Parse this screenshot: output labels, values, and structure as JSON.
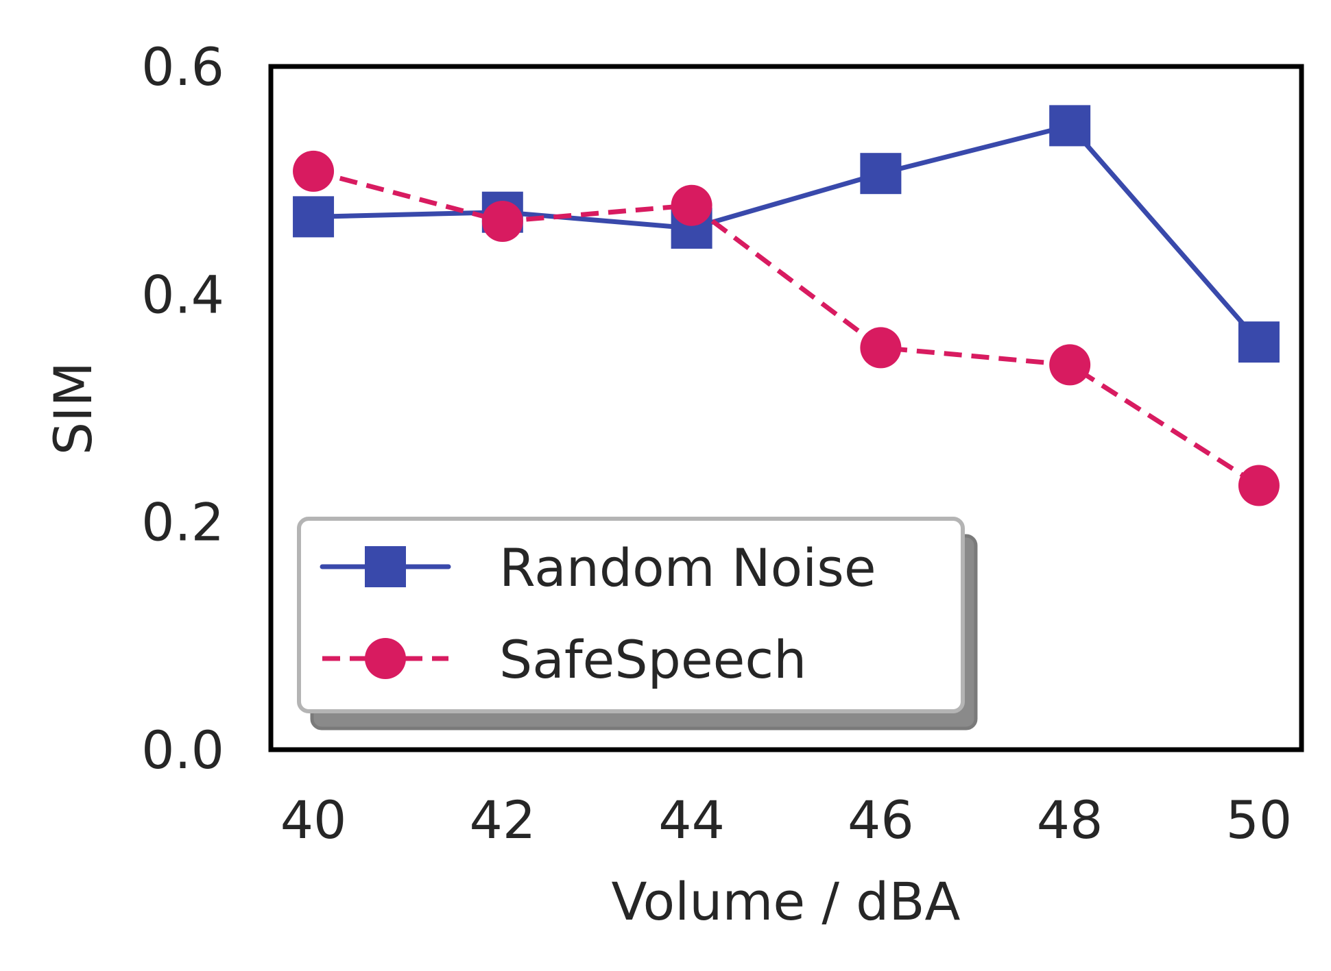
{
  "chart_data": {
    "type": "line",
    "title": "",
    "xlabel": "Volume / dBA",
    "ylabel": "SIM",
    "x": [
      40,
      42,
      44,
      46,
      48,
      50
    ],
    "xticks": [
      "40",
      "42",
      "44",
      "46",
      "48",
      "50"
    ],
    "yticks": [
      "0.0",
      "0.2",
      "0.4",
      "0.6"
    ],
    "ylim": [
      0.0,
      0.6
    ],
    "xlim": [
      39.55,
      50.45
    ],
    "grid": false,
    "legend_position": "lower-left",
    "series": [
      {
        "name": "Random Noise",
        "values": [
          0.468,
          0.472,
          0.458,
          0.506,
          0.548,
          0.358
        ],
        "color": "#3949ab",
        "line_style": "solid",
        "marker": "square"
      },
      {
        "name": "SafeSpeech",
        "values": [
          0.508,
          0.464,
          0.478,
          0.353,
          0.338,
          0.232
        ],
        "color": "#d81b60",
        "line_style": "dashed",
        "marker": "circle"
      }
    ]
  }
}
